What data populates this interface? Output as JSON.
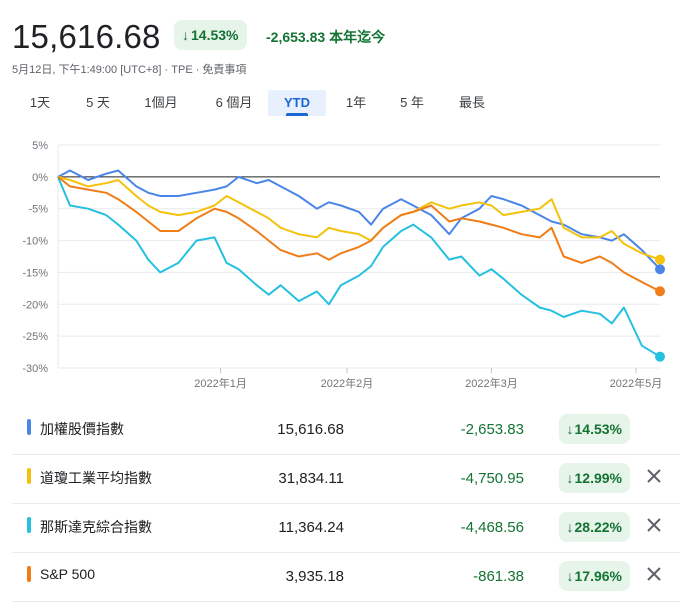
{
  "quote": {
    "price": "15,616.68",
    "change_pct": "14.53%",
    "change_abs": "-2,653.83",
    "period_label": "本年迄今",
    "timestamp": "5月12日, 下午1:49:00 [UTC+8] · TPE · 免責事項"
  },
  "tabs": [
    {
      "label": "1天"
    },
    {
      "label": "5 天"
    },
    {
      "label": "1個月"
    },
    {
      "label": "6 個月"
    },
    {
      "label": "YTD"
    },
    {
      "label": "1年"
    },
    {
      "label": "5 年"
    },
    {
      "label": "最長"
    }
  ],
  "active_tab": "YTD",
  "colors": {
    "taiex": "#4a86e8",
    "dow": "#f4c20d",
    "nasdaq": "#24c1e0",
    "sp500": "#f07d18",
    "positive": "#137333"
  },
  "chart_data": {
    "type": "line",
    "y_tick_labels": [
      "5%",
      "0%",
      "-5%",
      "-10%",
      "-15%",
      "-20%",
      "-25%",
      "-30%"
    ],
    "ylim": [
      -30,
      5
    ],
    "x_tick_labels": [
      "2022年1月",
      "2022年2月",
      "2022年3月",
      "2022年5月"
    ],
    "x_tick_positions": [
      27,
      48,
      72,
      96
    ],
    "grid": true,
    "series": [
      {
        "name": "加權股價指數",
        "color": "#4a86e8",
        "x": [
          0,
          2,
          5,
          8,
          10,
          13,
          15,
          17,
          20,
          23,
          26,
          28,
          30,
          33,
          35,
          37,
          40,
          43,
          45,
          47,
          50,
          52,
          54,
          57,
          59,
          62,
          65,
          67,
          70,
          72,
          74,
          77,
          80,
          82,
          84,
          87,
          90,
          92,
          94,
          97,
          100
        ],
        "values": [
          0.0,
          1.0,
          -0.5,
          0.5,
          1.0,
          -1.5,
          -2.5,
          -3.0,
          -3.0,
          -2.5,
          -2.0,
          -1.5,
          0.0,
          -1.0,
          -0.5,
          -1.5,
          -3.0,
          -5.0,
          -4.0,
          -4.5,
          -5.5,
          -7.5,
          -5.0,
          -3.5,
          -4.5,
          -6.0,
          -9.0,
          -6.5,
          -5.0,
          -3.0,
          -3.5,
          -4.5,
          -6.0,
          -7.0,
          -7.5,
          -9.0,
          -9.5,
          -10.0,
          -9.0,
          -11.5,
          -14.5
        ]
      },
      {
        "name": "道瓊工業平均指數",
        "color": "#f4c20d",
        "x": [
          0,
          2,
          5,
          8,
          10,
          13,
          15,
          17,
          20,
          23,
          26,
          28,
          30,
          33,
          35,
          37,
          40,
          43,
          45,
          47,
          50,
          52,
          54,
          57,
          59,
          62,
          65,
          67,
          70,
          72,
          74,
          77,
          80,
          82,
          84,
          87,
          90,
          92,
          94,
          97,
          100
        ],
        "values": [
          0.0,
          -0.5,
          -1.5,
          -1.0,
          -0.5,
          -3.0,
          -4.5,
          -5.5,
          -6.0,
          -5.5,
          -4.5,
          -3.0,
          -4.0,
          -5.5,
          -6.5,
          -8.0,
          -9.0,
          -9.5,
          -8.0,
          -8.5,
          -9.0,
          -10.0,
          -8.0,
          -6.0,
          -5.5,
          -4.0,
          -5.0,
          -4.5,
          -4.0,
          -4.5,
          -6.0,
          -5.5,
          -5.0,
          -3.5,
          -8.0,
          -9.5,
          -9.5,
          -8.5,
          -10.5,
          -12.0,
          -12.99
        ]
      },
      {
        "name": "那斯達克綜合指數",
        "color": "#24c1e0",
        "x": [
          0,
          2,
          5,
          8,
          10,
          13,
          15,
          17,
          20,
          23,
          26,
          28,
          30,
          33,
          35,
          37,
          40,
          43,
          45,
          47,
          50,
          52,
          54,
          57,
          59,
          62,
          65,
          67,
          70,
          72,
          74,
          77,
          80,
          82,
          84,
          87,
          90,
          92,
          94,
          97,
          100
        ],
        "values": [
          0.0,
          -4.5,
          -5.0,
          -6.0,
          -7.5,
          -10.0,
          -13.0,
          -15.0,
          -13.5,
          -10.0,
          -9.5,
          -13.5,
          -14.5,
          -17.0,
          -18.5,
          -17.0,
          -19.5,
          -18.0,
          -20.0,
          -17.0,
          -15.5,
          -14.0,
          -11.0,
          -8.5,
          -7.5,
          -9.5,
          -13.0,
          -12.5,
          -15.5,
          -14.5,
          -16.0,
          -18.5,
          -20.5,
          -21.0,
          -22.0,
          -21.0,
          -21.5,
          -23.0,
          -20.5,
          -26.5,
          -28.22
        ]
      },
      {
        "name": "S&P 500",
        "color": "#f07d18",
        "x": [
          0,
          2,
          5,
          8,
          10,
          13,
          15,
          17,
          20,
          23,
          26,
          28,
          30,
          33,
          35,
          37,
          40,
          43,
          45,
          47,
          50,
          52,
          54,
          57,
          59,
          62,
          65,
          67,
          70,
          72,
          74,
          77,
          80,
          82,
          84,
          87,
          90,
          92,
          94,
          97,
          100
        ],
        "values": [
          0.0,
          -1.5,
          -2.0,
          -2.5,
          -3.5,
          -5.5,
          -7.0,
          -8.5,
          -8.5,
          -6.5,
          -5.0,
          -5.5,
          -6.5,
          -8.5,
          -10.0,
          -11.5,
          -12.5,
          -12.0,
          -13.0,
          -12.0,
          -11.0,
          -10.0,
          -8.0,
          -6.0,
          -5.5,
          -4.5,
          -7.0,
          -6.5,
          -7.0,
          -7.5,
          -8.0,
          -9.0,
          -9.5,
          -8.0,
          -12.5,
          -13.5,
          -12.5,
          -13.5,
          -15.0,
          -16.5,
          -17.96
        ]
      }
    ]
  },
  "legend_rows": [
    {
      "name": "加權股價指數",
      "value": "15,616.68",
      "delta": "-2,653.83",
      "pct": "14.53%",
      "color": "#4a86e8",
      "removable": false
    },
    {
      "name": "道瓊工業平均指數",
      "value": "31,834.11",
      "delta": "-4,750.95",
      "pct": "12.99%",
      "color": "#f4c20d",
      "removable": true
    },
    {
      "name": "那斯達克綜合指數",
      "value": "11,364.24",
      "delta": "-4,468.56",
      "pct": "28.22%",
      "color": "#24c1e0",
      "removable": true
    },
    {
      "name": "S&P 500",
      "value": "3,935.18",
      "delta": "-861.38",
      "pct": "17.96%",
      "color": "#f07d18",
      "removable": true
    }
  ]
}
